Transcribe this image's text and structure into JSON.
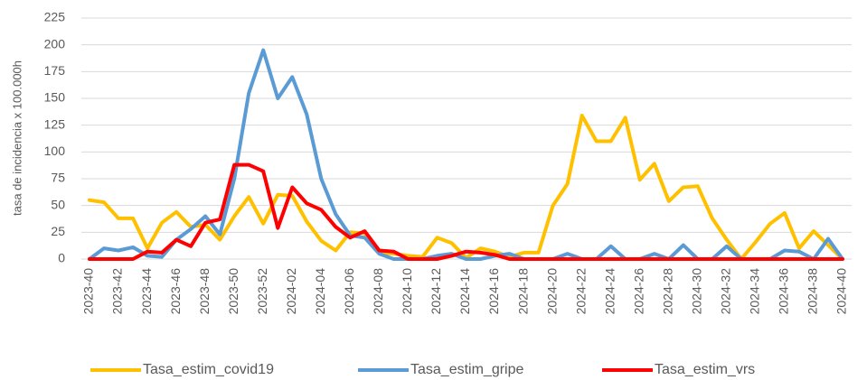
{
  "chart_data": {
    "type": "line",
    "y_label": "tasa de incidencia x 100.000h",
    "categories": [
      "2023-40",
      null,
      "2023-42",
      null,
      "2023-44",
      null,
      "2023-46",
      null,
      "2023-48",
      null,
      "2023-50",
      null,
      "2023-52",
      null,
      "2024-02",
      null,
      "2024-04",
      null,
      "2024-06",
      null,
      "2024-08",
      null,
      "2024-10",
      null,
      "2024-12",
      null,
      "2024-14",
      null,
      "2024-16",
      null,
      "2024-18",
      null,
      "2024-20",
      null,
      "2024-22",
      null,
      "2024-24",
      null,
      "2024-26",
      null,
      "2024-28",
      null,
      "2024-30",
      null,
      "2024-32",
      null,
      "2024-34",
      null,
      "2024-36",
      null,
      "2024-38",
      null,
      "2024-40"
    ],
    "series": [
      {
        "name": "Tasa_estim_covid19",
        "color": "#ffc000",
        "values": [
          55,
          53,
          38,
          38,
          10,
          34,
          44,
          30,
          32,
          18,
          40,
          58,
          33,
          60,
          59,
          35,
          17,
          8,
          25,
          24,
          6,
          5,
          3,
          2,
          20,
          15,
          1,
          10,
          7,
          2,
          6,
          6,
          50,
          70,
          134,
          110,
          110,
          132,
          74,
          89,
          54,
          67,
          68,
          38,
          18,
          0,
          16,
          33,
          43,
          10,
          26,
          13,
          0
        ]
      },
      {
        "name": "Tasa_estim_gripe",
        "color": "#5b9bd5",
        "values": [
          0,
          10,
          8,
          11,
          3,
          2,
          18,
          28,
          40,
          23,
          75,
          155,
          195,
          150,
          170,
          135,
          75,
          42,
          22,
          20,
          5,
          0,
          0,
          0,
          3,
          5,
          0,
          0,
          3,
          5,
          0,
          0,
          0,
          5,
          0,
          0,
          12,
          0,
          0,
          5,
          0,
          13,
          0,
          0,
          12,
          0,
          0,
          0,
          8,
          7,
          0,
          19,
          0
        ]
      },
      {
        "name": "Tasa_estim_vrs",
        "color": "#ff0000",
        "values": [
          0,
          0,
          0,
          0,
          7,
          6,
          18,
          12,
          34,
          37,
          88,
          88,
          82,
          29,
          67,
          52,
          46,
          30,
          20,
          26,
          8,
          7,
          0,
          0,
          0,
          3,
          7,
          6,
          4,
          0,
          0,
          0,
          0,
          0,
          0,
          0,
          0,
          0,
          0,
          0,
          0,
          0,
          0,
          0,
          0,
          0,
          0,
          0,
          0,
          0,
          0,
          0,
          0
        ]
      }
    ],
    "ylim": [
      0,
      225
    ],
    "yticks": [
      0,
      25,
      50,
      75,
      100,
      125,
      150,
      175,
      200,
      225
    ],
    "grid": true
  }
}
